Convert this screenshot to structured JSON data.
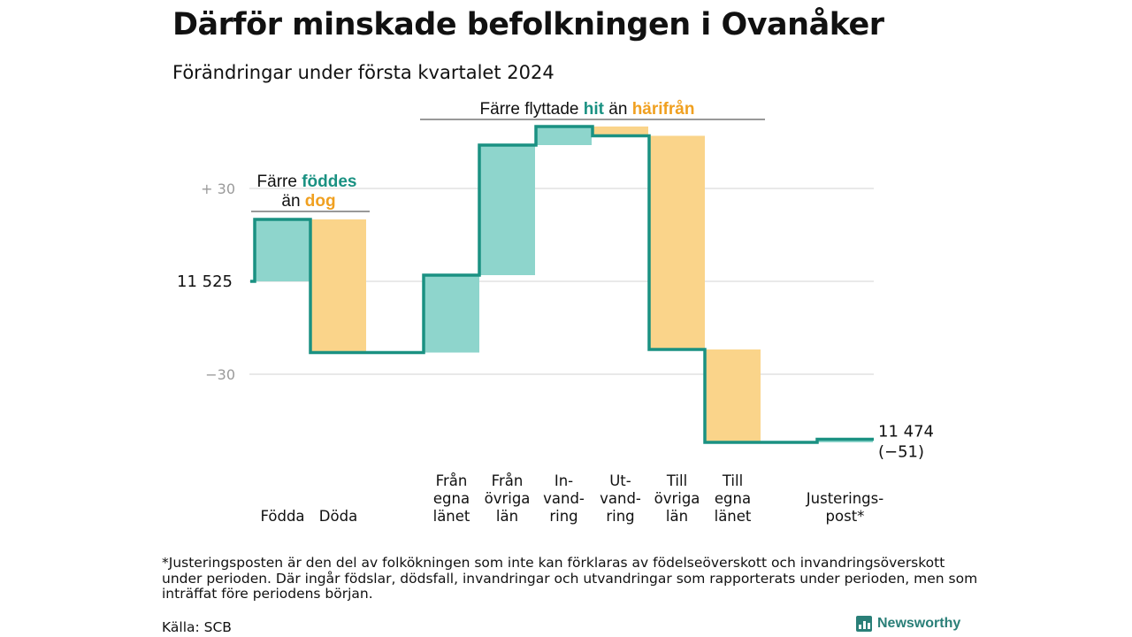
{
  "title": "Därför minskade befolkningen i Ovanåker",
  "subtitle": "Förändringar under första kvartalet 2024",
  "footnote": "*Justeringsposten är den del av folkökningen som inte kan förklaras av födelseöverskott och invandringsöverskott under perioden. Där ingår födslar, dödsfall, invandringar och utvandringar som rapporterats under perioden, men som inträffat före periodens början.",
  "source": "Källa: SCB",
  "brand": "Newsworthy",
  "colors": {
    "increase": "#8ed5cc",
    "decrease": "#fad48a",
    "line": "#1a9182",
    "accent_teal": "#1a9182",
    "accent_orange": "#f0a020",
    "grid": "#e2e2e2"
  },
  "chart_data": {
    "type": "waterfall",
    "start_value": 11525,
    "start_label": "11  525",
    "end_value": 11474,
    "end_label": "11 474",
    "end_change_label": "(−51)",
    "yticks": [
      {
        "value": 30,
        "label": "+  30"
      },
      {
        "value": -30,
        "label": "−30"
      }
    ],
    "ylim": [
      -60,
      52
    ],
    "steps": [
      {
        "label": [
          "Födda"
        ],
        "change": 20
      },
      {
        "label": [
          "Döda"
        ],
        "change": -43
      },
      {
        "label": [
          "Från",
          "egna",
          "länet"
        ],
        "change": 25
      },
      {
        "label": [
          "Från",
          "övriga",
          "län"
        ],
        "change": 42
      },
      {
        "label": [
          "In-",
          "vand-",
          "ring"
        ],
        "change": 6
      },
      {
        "label": [
          "Ut-",
          "vand-",
          "ring"
        ],
        "change": -3
      },
      {
        "label": [
          "Till",
          "övriga",
          "län"
        ],
        "change": -69
      },
      {
        "label": [
          "Till",
          "egna",
          "länet"
        ],
        "change": -30
      },
      {
        "label": [
          "Justerings-",
          "post*"
        ],
        "change": 1
      }
    ],
    "annotations": {
      "group1": {
        "line1_prefix": "Färre",
        "line1_highlight": "föddes",
        "line2_prefix": "än",
        "line2_highlight": "dog"
      },
      "group2": {
        "prefix": "Färre flyttade",
        "highlight1": "hit",
        "middle": "än",
        "highlight2": "härifrån"
      }
    }
  }
}
